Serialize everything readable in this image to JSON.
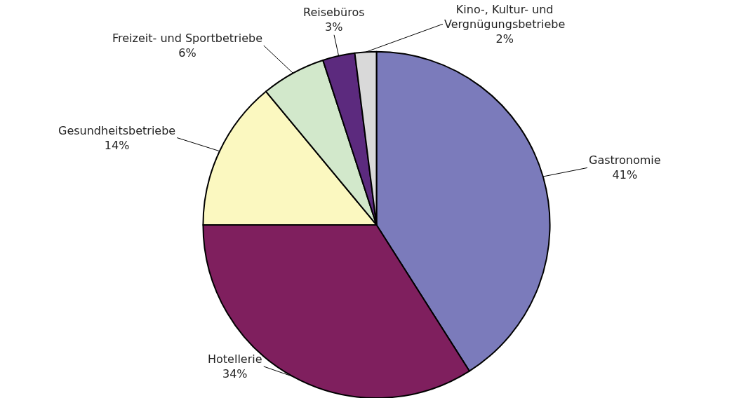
{
  "chart_data": {
    "type": "pie",
    "categories": [
      "Gastronomie",
      "Hotellerie",
      "Gesundheitsbetriebe",
      "Freizeit- und Sportbetriebe",
      "Reisebüros",
      "Kino-, Kultur- und Vergnügungsbetriebe"
    ],
    "values": [
      41,
      34,
      14,
      6,
      3,
      2
    ],
    "value_labels": [
      "41%",
      "34%",
      "14%",
      "6%",
      "3%",
      "2%"
    ],
    "colors": [
      "#7b7bbb",
      "#7f1f5e",
      "#fbf8c0",
      "#d2e8cb",
      "#5c2a7e",
      "#d9d9d9"
    ],
    "legend": false
  }
}
